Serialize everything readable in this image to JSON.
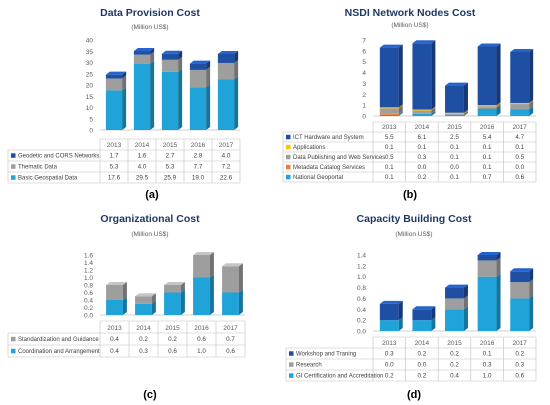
{
  "chart_data": [
    {
      "type": "bar",
      "stacked": true,
      "panel_label": "(a)",
      "title": "Data Provision Cost",
      "subtitle": "(Million US$)",
      "categories": [
        "2013",
        "2014",
        "2015",
        "2016",
        "2017"
      ],
      "ylim": [
        0,
        40
      ],
      "yticks": [
        0,
        5,
        10,
        15,
        20,
        25,
        30,
        35,
        40
      ],
      "grid": false,
      "legend": "table-below",
      "series": [
        {
          "name": "Basic Geospatial Data",
          "values": [
            17.6,
            29.5,
            25.9,
            19.0,
            22.6
          ],
          "color": "#1fa3d9"
        },
        {
          "name": "Thematic Data",
          "values": [
            5.3,
            4.0,
            5.3,
            7.7,
            7.2
          ],
          "color": "#9e9e9e"
        },
        {
          "name": "Geodetic and CORS Networks",
          "values": [
            1.7,
            1.6,
            2.7,
            2.8,
            4.0
          ],
          "color": "#1f4fa3"
        }
      ],
      "table_order": [
        2,
        1,
        0
      ],
      "table_rows": [
        [
          "1.7",
          "1.6",
          "2.7",
          "2.8",
          "4.0"
        ],
        [
          "5.3",
          "4.0",
          "5.3",
          "7.7",
          "7.2"
        ],
        [
          "17.6",
          "29.5",
          "25.9",
          "19.0",
          "22.6"
        ]
      ]
    },
    {
      "type": "bar",
      "stacked": true,
      "panel_label": "(b)",
      "title": "NSDI Network Nodes Cost",
      "subtitle": "(Million US$)",
      "categories": [
        "2013",
        "2014",
        "2015",
        "2016",
        "2017"
      ],
      "ylim": [
        0,
        7
      ],
      "yticks": [
        0,
        1,
        2,
        3,
        4,
        5,
        6,
        7
      ],
      "grid": false,
      "legend": "table-below",
      "series": [
        {
          "name": "National Geoportal",
          "values": [
            0.1,
            0.2,
            0.1,
            0.7,
            0.6
          ],
          "color": "#1fa3d9"
        },
        {
          "name": "Metadata Catalog Services",
          "values": [
            0.1,
            0.0,
            0.0,
            0.1,
            0.0
          ],
          "color": "#ed7d31"
        },
        {
          "name": "Data Publishing and Web Services",
          "values": [
            0.5,
            0.3,
            0.1,
            0.1,
            0.5
          ],
          "color": "#9e9e9e"
        },
        {
          "name": "Applications",
          "values": [
            0.1,
            0.1,
            0.1,
            0.1,
            0.1
          ],
          "color": "#ffc000"
        },
        {
          "name": "ICT Hardware and System",
          "values": [
            5.5,
            6.1,
            2.5,
            5.4,
            4.7
          ],
          "color": "#1f4fa3"
        }
      ],
      "table_order": [
        4,
        3,
        2,
        1,
        0
      ],
      "table_rows": [
        [
          "5.5",
          "6.1",
          "2.5",
          "5.4",
          "4.7"
        ],
        [
          "0.1",
          "0.1",
          "0.1",
          "0.1",
          "0.1"
        ],
        [
          "0.5",
          "0.3",
          "0.1",
          "0.1",
          "0.5"
        ],
        [
          "0.1",
          "0.0",
          "0.0",
          "0.1",
          "0.0"
        ],
        [
          "0.1",
          "0.2",
          "0.1",
          "0.7",
          "0.6"
        ]
      ]
    },
    {
      "type": "bar",
      "stacked": true,
      "panel_label": "(c)",
      "title": "Organizational Cost",
      "subtitle": "(Million US$)",
      "categories": [
        "2013",
        "2014",
        "2015",
        "2016",
        "2017"
      ],
      "ylim": [
        0,
        1.6
      ],
      "yticks": [
        0,
        0.2,
        0.4,
        0.6,
        0.8,
        1.0,
        1.2,
        1.4,
        1.6
      ],
      "grid": false,
      "legend": "table-below",
      "series": [
        {
          "name": "Coordination and Arrangement",
          "values": [
            0.4,
            0.3,
            0.6,
            1.0,
            0.6
          ],
          "color": "#1fa3d9"
        },
        {
          "name": "Standardization and Guidance",
          "values": [
            0.4,
            0.2,
            0.2,
            0.6,
            0.7
          ],
          "color": "#9e9e9e"
        }
      ],
      "table_order": [
        1,
        0
      ],
      "table_rows": [
        [
          "0.4",
          "0.2",
          "0.2",
          "0.6",
          "0.7"
        ],
        [
          "0.4",
          "0.3",
          "0.6",
          "1.0",
          "0.6"
        ]
      ]
    },
    {
      "type": "bar",
      "stacked": true,
      "panel_label": "(d)",
      "title": "Capacity Building Cost",
      "subtitle": "(Million US$)",
      "categories": [
        "2013",
        "2014",
        "2015",
        "2016",
        "2017"
      ],
      "ylim": [
        0,
        1.4
      ],
      "yticks": [
        0,
        0.2,
        0.4,
        0.6,
        0.8,
        1.0,
        1.2,
        1.4
      ],
      "grid": false,
      "legend": "table-below",
      "series": [
        {
          "name": "GI Certification and Accreditation",
          "values": [
            0.2,
            0.2,
            0.4,
            1.0,
            0.6
          ],
          "color": "#1fa3d9"
        },
        {
          "name": "Research",
          "values": [
            0.0,
            0.0,
            0.2,
            0.3,
            0.3
          ],
          "color": "#9e9e9e"
        },
        {
          "name": "Workshop and Traning",
          "values": [
            0.3,
            0.2,
            0.2,
            0.1,
            0.2
          ],
          "color": "#1f4fa3"
        }
      ],
      "table_order": [
        2,
        1,
        0
      ],
      "table_rows": [
        [
          "0.3",
          "0.2",
          "0.2",
          "0.1",
          "0.2"
        ],
        [
          "0.0",
          "0.0",
          "0.2",
          "0.3",
          "0.3"
        ],
        [
          "0.2",
          "0.2",
          "0.4",
          "1.0",
          "0.6"
        ]
      ]
    }
  ]
}
